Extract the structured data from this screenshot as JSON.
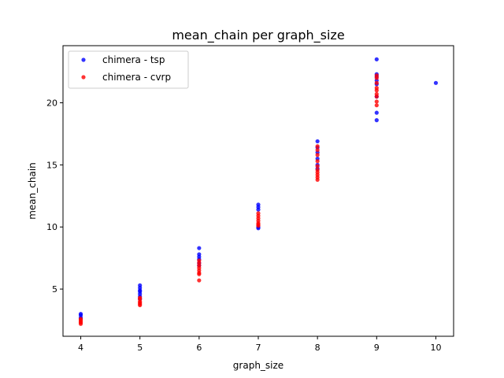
{
  "chart_data": {
    "type": "scatter",
    "title": "mean_chain per graph_size",
    "xlabel": "graph_size",
    "ylabel": "mean_chain",
    "xlim": [
      3.7,
      10.3
    ],
    "ylim": [
      1.2,
      24.6
    ],
    "xticks": [
      "4",
      "5",
      "6",
      "7",
      "8",
      "9",
      "10"
    ],
    "yticks": [
      "5",
      "10",
      "15",
      "20"
    ],
    "grid": false,
    "legend_position": "top-left",
    "series": [
      {
        "name": "chimera - tsp",
        "color": "#0000ff",
        "points": [
          {
            "x": 4,
            "y": 3.0
          },
          {
            "x": 4,
            "y": 2.9
          },
          {
            "x": 4,
            "y": 2.7
          },
          {
            "x": 4,
            "y": 2.6
          },
          {
            "x": 5,
            "y": 5.3
          },
          {
            "x": 5,
            "y": 5.1
          },
          {
            "x": 5,
            "y": 4.9
          },
          {
            "x": 5,
            "y": 4.8
          },
          {
            "x": 5,
            "y": 4.6
          },
          {
            "x": 5,
            "y": 4.4
          },
          {
            "x": 5,
            "y": 4.2
          },
          {
            "x": 6,
            "y": 8.3
          },
          {
            "x": 6,
            "y": 7.8
          },
          {
            "x": 6,
            "y": 7.6
          },
          {
            "x": 6,
            "y": 7.4
          },
          {
            "x": 6,
            "y": 7.1
          },
          {
            "x": 6,
            "y": 6.9
          },
          {
            "x": 7,
            "y": 11.8
          },
          {
            "x": 7,
            "y": 11.6
          },
          {
            "x": 7,
            "y": 11.4
          },
          {
            "x": 7,
            "y": 10.0
          },
          {
            "x": 7,
            "y": 9.9
          },
          {
            "x": 8,
            "y": 16.9
          },
          {
            "x": 8,
            "y": 16.4
          },
          {
            "x": 8,
            "y": 16.0
          },
          {
            "x": 8,
            "y": 15.5
          },
          {
            "x": 8,
            "y": 15.0
          },
          {
            "x": 8,
            "y": 14.7
          },
          {
            "x": 9,
            "y": 23.5
          },
          {
            "x": 9,
            "y": 22.3
          },
          {
            "x": 9,
            "y": 22.1
          },
          {
            "x": 9,
            "y": 21.8
          },
          {
            "x": 9,
            "y": 21.5
          },
          {
            "x": 9,
            "y": 20.5
          },
          {
            "x": 9,
            "y": 19.2
          },
          {
            "x": 9,
            "y": 18.6
          },
          {
            "x": 10,
            "y": 21.6
          }
        ]
      },
      {
        "name": "chimera - cvrp",
        "color": "#ff0000",
        "points": [
          {
            "x": 4,
            "y": 2.6
          },
          {
            "x": 4,
            "y": 2.5
          },
          {
            "x": 4,
            "y": 2.4
          },
          {
            "x": 4,
            "y": 2.3
          },
          {
            "x": 4,
            "y": 2.2
          },
          {
            "x": 5,
            "y": 4.3
          },
          {
            "x": 5,
            "y": 4.2
          },
          {
            "x": 5,
            "y": 4.0
          },
          {
            "x": 5,
            "y": 3.9
          },
          {
            "x": 5,
            "y": 3.8
          },
          {
            "x": 5,
            "y": 3.7
          },
          {
            "x": 6,
            "y": 7.3
          },
          {
            "x": 6,
            "y": 7.1
          },
          {
            "x": 6,
            "y": 6.9
          },
          {
            "x": 6,
            "y": 6.7
          },
          {
            "x": 6,
            "y": 6.5
          },
          {
            "x": 6,
            "y": 6.3
          },
          {
            "x": 6,
            "y": 6.2
          },
          {
            "x": 6,
            "y": 5.7
          },
          {
            "x": 7,
            "y": 11.1
          },
          {
            "x": 7,
            "y": 10.9
          },
          {
            "x": 7,
            "y": 10.7
          },
          {
            "x": 7,
            "y": 10.5
          },
          {
            "x": 7,
            "y": 10.3
          },
          {
            "x": 7,
            "y": 10.2
          },
          {
            "x": 7,
            "y": 10.1
          },
          {
            "x": 8,
            "y": 16.5
          },
          {
            "x": 8,
            "y": 16.2
          },
          {
            "x": 8,
            "y": 15.8
          },
          {
            "x": 8,
            "y": 15.3
          },
          {
            "x": 8,
            "y": 14.9
          },
          {
            "x": 8,
            "y": 14.6
          },
          {
            "x": 8,
            "y": 14.4
          },
          {
            "x": 8,
            "y": 14.2
          },
          {
            "x": 8,
            "y": 14.0
          },
          {
            "x": 8,
            "y": 13.8
          },
          {
            "x": 9,
            "y": 22.2
          },
          {
            "x": 9,
            "y": 22.0
          },
          {
            "x": 9,
            "y": 21.6
          },
          {
            "x": 9,
            "y": 21.2
          },
          {
            "x": 9,
            "y": 21.0
          },
          {
            "x": 9,
            "y": 20.7
          },
          {
            "x": 9,
            "y": 20.5
          },
          {
            "x": 9,
            "y": 20.1
          },
          {
            "x": 9,
            "y": 19.8
          }
        ]
      }
    ]
  }
}
